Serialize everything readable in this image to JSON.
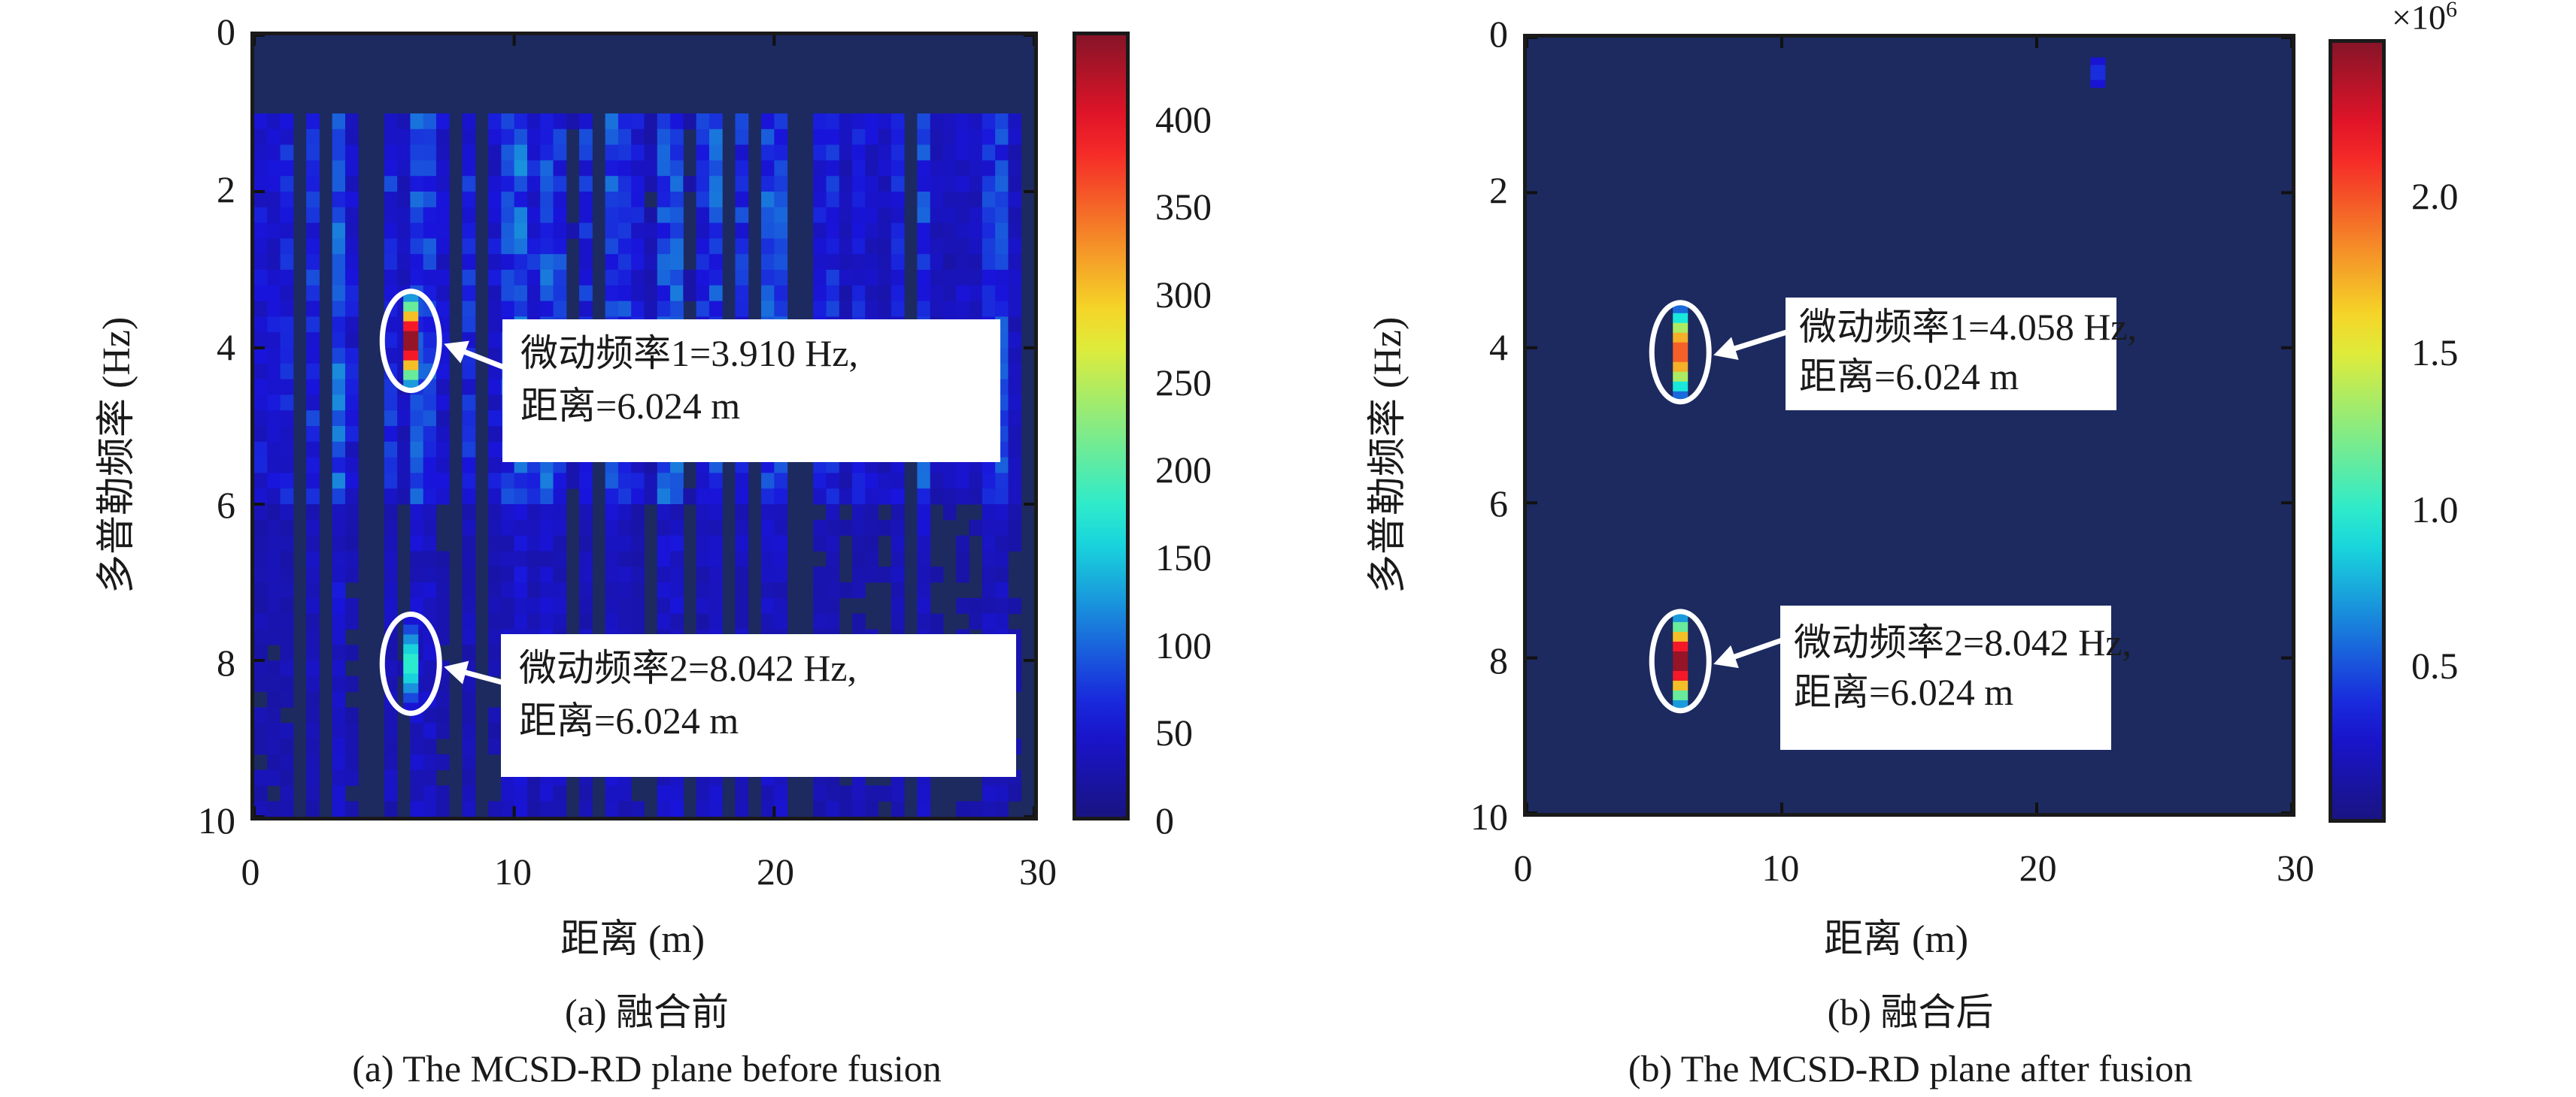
{
  "chart_data": [
    {
      "type": "heatmap",
      "panel": "a",
      "xlabel": "距离 (m)",
      "ylabel": "多普勒频率 (Hz)",
      "xlim": [
        0,
        30
      ],
      "ylim": [
        0,
        10
      ],
      "y_reversed": true,
      "xticks": [
        "0",
        "10",
        "20",
        "30"
      ],
      "yticks": [
        "0",
        "2",
        "4",
        "6",
        "8",
        "10"
      ],
      "colorbar": {
        "range": [
          0,
          450
        ],
        "ticks": [
          "0",
          "50",
          "100",
          "150",
          "200",
          "250",
          "300",
          "350",
          "400"
        ],
        "multiplier": ""
      },
      "peaks": [
        {
          "range_m": 6.024,
          "doppler_hz": 3.91,
          "level": 450
        },
        {
          "range_m": 6.024,
          "doppler_hz": 8.042,
          "level": 180
        }
      ],
      "background": "noisy",
      "annotations": [
        {
          "line1": "微动频率1=3.910 Hz,",
          "line2": "距离=6.024 m"
        },
        {
          "line1": "微动频率2=8.042 Hz,",
          "line2": "距离=6.024 m"
        }
      ],
      "caption_cn": "(a)  融合前",
      "caption_en": "(a) The MCSD-RD plane before fusion"
    },
    {
      "type": "heatmap",
      "panel": "b",
      "xlabel": "距离 (m)",
      "ylabel": "多普勒频率 (Hz)",
      "xlim": [
        0,
        30
      ],
      "ylim": [
        0,
        10
      ],
      "y_reversed": true,
      "xticks": [
        "0",
        "10",
        "20",
        "30"
      ],
      "yticks": [
        "0",
        "2",
        "4",
        "6",
        "8",
        "10"
      ],
      "colorbar": {
        "range": [
          0,
          2.5
        ],
        "ticks": [
          "0.5",
          "1.0",
          "1.5",
          "2.0"
        ],
        "multiplier_base": "×10",
        "multiplier_exp": "6"
      },
      "peaks": [
        {
          "range_m": 6.024,
          "doppler_hz": 4.058,
          "level": 2.0
        },
        {
          "range_m": 6.024,
          "doppler_hz": 8.042,
          "level": 2.5
        },
        {
          "range_m": 22.4,
          "doppler_hz": 0.45,
          "level": 0.4
        }
      ],
      "background": "clean",
      "annotations": [
        {
          "line1": "微动频率1=4.058 Hz,",
          "line2": "距离=6.024 m"
        },
        {
          "line1": "微动频率2=8.042 Hz,",
          "line2": "距离=6.024 m"
        }
      ],
      "caption_cn": "(b) 融合后",
      "caption_en": "(b) The MCSD-RD plane after fusion"
    }
  ],
  "colors": {
    "background_blue": "#1c2a60",
    "annotation_bg": "#ffffff",
    "ellipse": "#ffffff"
  }
}
